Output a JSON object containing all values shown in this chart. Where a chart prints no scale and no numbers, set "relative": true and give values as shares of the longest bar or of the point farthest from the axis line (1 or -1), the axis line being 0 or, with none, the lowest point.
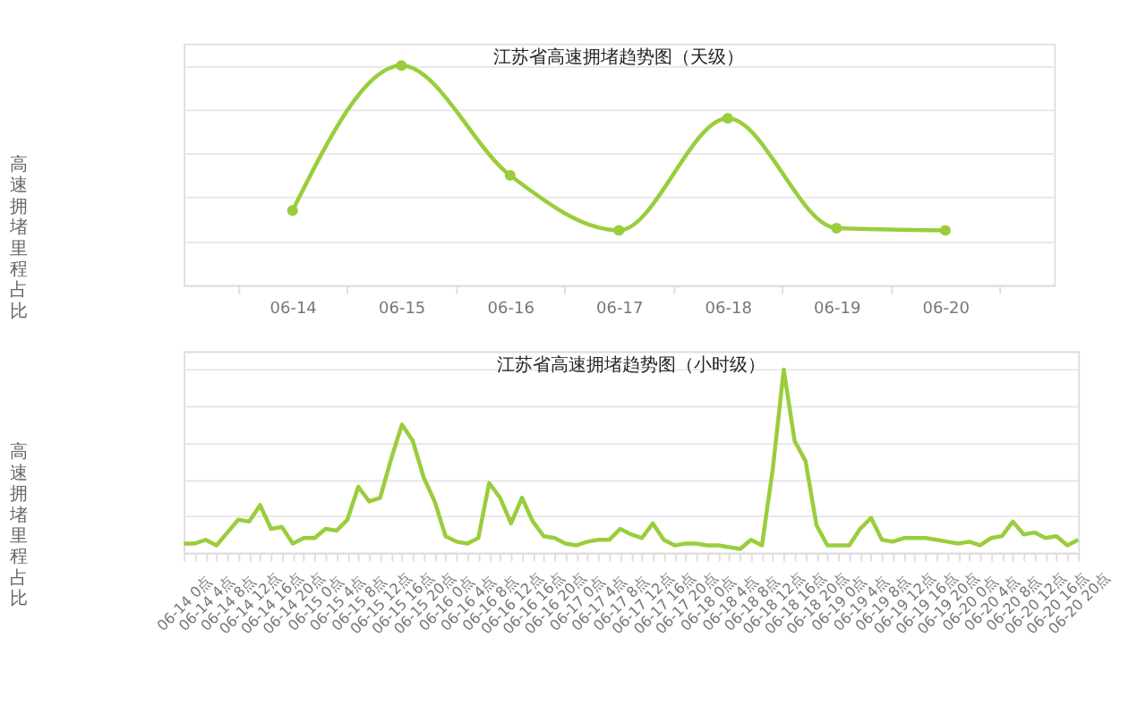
{
  "chart_data": [
    {
      "type": "line",
      "title": "江苏省高速拥堵趋势图（天级）",
      "ylabel": "高速拥堵里程占比",
      "relative": true,
      "grid": "y",
      "marker": "circle",
      "line_style": "solid",
      "tick_labels": "x",
      "categories": [
        "06-14",
        "06-15",
        "06-16",
        "06-17",
        "06-18",
        "06-19",
        "06-20"
      ],
      "series": [
        {
          "color": "#9acd3c",
          "values": [
            0.34,
            1.0,
            0.5,
            0.25,
            0.76,
            0.26,
            0.25
          ]
        }
      ]
    },
    {
      "type": "line",
      "title": "江苏省高速拥堵趋势图（小时级）",
      "ylabel": "高速拥堵里程占比",
      "relative": true,
      "grid": "y",
      "marker": "none",
      "line_style": "solid",
      "tick_labels": "x",
      "categories": [
        "06-14 0点",
        null,
        "06-14 4点",
        null,
        "06-14 8点",
        null,
        "06-14 12点",
        null,
        "06-14 16点",
        null,
        "06-14 20点",
        null,
        "06-15 0点",
        null,
        "06-15 4点",
        null,
        "06-15 8点",
        null,
        "06-15 12点",
        null,
        "06-15 16点",
        null,
        "06-15 20点",
        null,
        "06-16 0点",
        null,
        "06-16 4点",
        null,
        "06-16 8点",
        null,
        "06-16 12点",
        null,
        "06-16 16点",
        null,
        "06-16 20点",
        null,
        "06-17 0点",
        null,
        "06-17 4点",
        null,
        "06-17 8点",
        null,
        "06-17 12点",
        null,
        "06-17 16点",
        null,
        "06-17 20点",
        null,
        "06-18 0点",
        null,
        "06-18 4点",
        null,
        "06-18 8点",
        null,
        "06-18 12点",
        null,
        "06-18 16点",
        null,
        "06-18 20点",
        null,
        "06-19 0点",
        null,
        "06-19 4点",
        null,
        "06-19 8点",
        null,
        "06-19 12点",
        null,
        "06-19 16点",
        null,
        "06-19 20点",
        null,
        "06-20 0点",
        null,
        "06-20 4点",
        null,
        "06-20 8点",
        null,
        "06-20 12点",
        null,
        "06-20 16点",
        null,
        "06-20 20点"
      ],
      "series": [
        {
          "color": "#9acd3c",
          "values": [
            0.05,
            0.05,
            0.07,
            0.04,
            0.11,
            0.18,
            0.17,
            0.26,
            0.13,
            0.14,
            0.05,
            0.08,
            0.08,
            0.13,
            0.12,
            0.18,
            0.36,
            0.28,
            0.3,
            0.51,
            0.7,
            0.61,
            0.41,
            0.28,
            0.09,
            0.06,
            0.05,
            0.08,
            0.38,
            0.3,
            0.16,
            0.3,
            0.17,
            0.09,
            0.08,
            0.05,
            0.04,
            0.06,
            0.07,
            0.07,
            0.13,
            0.1,
            0.08,
            0.16,
            0.07,
            0.04,
            0.05,
            0.05,
            0.04,
            0.04,
            0.03,
            0.02,
            0.07,
            0.04,
            0.46,
            1.0,
            0.61,
            0.5,
            0.15,
            0.04,
            0.04,
            0.04,
            0.13,
            0.19,
            0.07,
            0.06,
            0.08,
            0.08,
            0.08,
            0.07,
            0.06,
            0.05,
            0.06,
            0.04,
            0.08,
            0.09,
            0.17,
            0.1,
            0.11,
            0.08,
            0.09,
            0.04,
            0.07
          ]
        }
      ]
    }
  ]
}
